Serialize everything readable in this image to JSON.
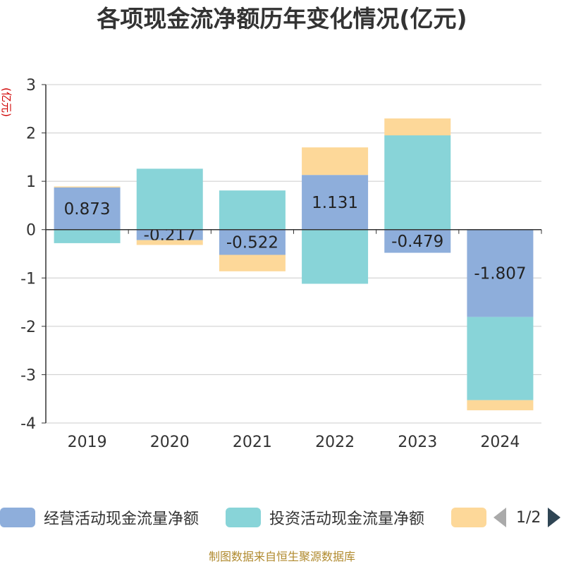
{
  "chart_data": {
    "type": "bar",
    "stacked": true,
    "title": "各项现金流净额历年变化情况(亿元)",
    "ylabel": "(亿元)",
    "ylim": [
      -4,
      3
    ],
    "yticks": [
      3,
      2,
      1,
      0,
      -1,
      -2,
      -3,
      -4
    ],
    "categories": [
      "2019",
      "2020",
      "2021",
      "2022",
      "2023",
      "2024"
    ],
    "series": [
      {
        "name": "经营活动现金流量净额",
        "color": "#8eaedb",
        "values": [
          0.873,
          -0.217,
          -0.522,
          1.131,
          -0.479,
          -1.807
        ],
        "labels": [
          "0.873",
          "-0.217",
          "-0.522",
          "1.131",
          "-0.479",
          "-1.807"
        ]
      },
      {
        "name": "投资活动现金流量净额",
        "color": "#88d4d8",
        "values": [
          -0.28,
          1.26,
          0.81,
          -1.12,
          1.95,
          -1.72
        ]
      },
      {
        "name": "",
        "color": "#fdd899",
        "values": [
          0.02,
          -0.1,
          -0.34,
          0.57,
          0.35,
          -0.21
        ]
      }
    ],
    "grid": true,
    "legend_position": "bottom"
  },
  "legend": {
    "items": [
      "经营活动现金流量净额",
      "投资活动现金流量净额",
      ""
    ],
    "page": "1/2"
  },
  "source": "制图数据来自恒生聚源数据库"
}
